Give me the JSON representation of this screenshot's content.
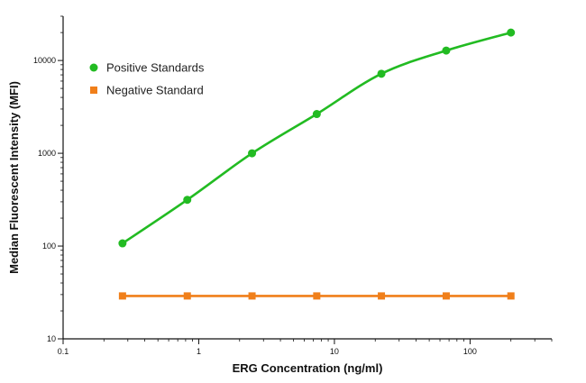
{
  "chart_data": {
    "type": "scatter",
    "xlabel": "ERG Concentration (ng/ml)",
    "ylabel": "Median Fluorescent Intensity (MFI)",
    "x_scale": "log",
    "y_scale": "log",
    "xlim": [
      0.1,
      400
    ],
    "ylim": [
      10,
      30000
    ],
    "x_ticks": [
      {
        "value": 0.1,
        "label": "0.1"
      },
      {
        "value": 1,
        "label": "1"
      },
      {
        "value": 10,
        "label": "10"
      },
      {
        "value": 100,
        "label": "100"
      }
    ],
    "y_ticks": [
      {
        "value": 10,
        "label": "10"
      },
      {
        "value": 100,
        "label": "100"
      },
      {
        "value": 1000,
        "label": "1000"
      },
      {
        "value": 10000,
        "label": "10000"
      }
    ],
    "grid": false,
    "legend_position": "top-left",
    "series": [
      {
        "name": "Positive Standards",
        "color": "#22bb22",
        "marker": "circle",
        "fit_curve": true,
        "x": [
          0.274,
          0.823,
          2.47,
          7.41,
          22.2,
          66.7,
          200
        ],
        "y": [
          107,
          315,
          1000,
          2650,
          7200,
          12800,
          20000
        ]
      },
      {
        "name": "Negative Standard",
        "color": "#f07f1a",
        "marker": "square",
        "fit_curve": false,
        "x": [
          0.274,
          0.823,
          2.47,
          7.41,
          22.2,
          66.7,
          200
        ],
        "y": [
          29,
          29,
          29,
          29,
          29,
          29,
          29
        ]
      }
    ]
  }
}
